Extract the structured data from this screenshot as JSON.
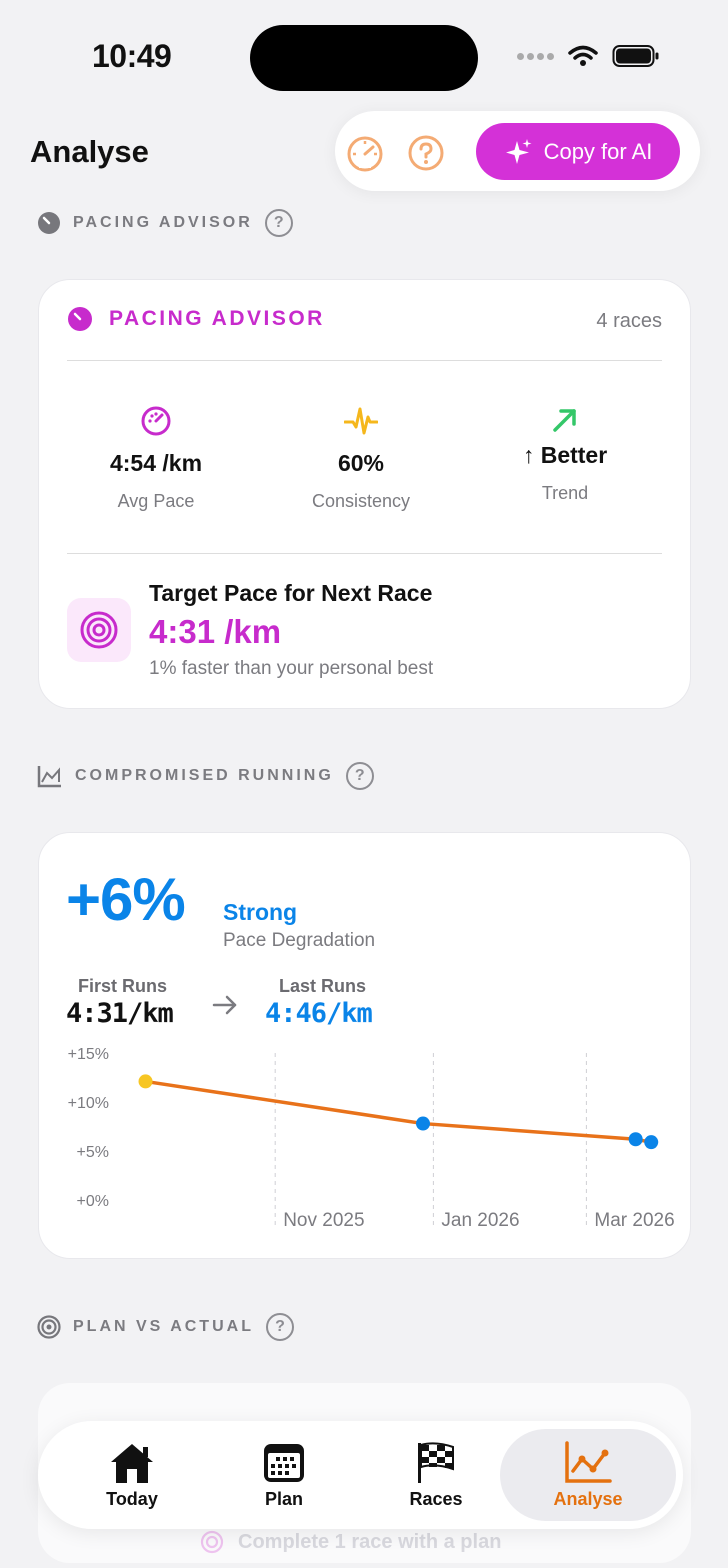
{
  "status": {
    "time": "10:49"
  },
  "header": {
    "title": "Analyse",
    "copy_ai_label": "Copy for AI"
  },
  "pacing_section": {
    "label": "PACING ADVISOR",
    "help": "?"
  },
  "pacing_card": {
    "title": "PACING ADVISOR",
    "race_count": "4 races",
    "stats": [
      {
        "value": "4:54 /km",
        "label": "Avg Pace",
        "icon": "speedometer-icon"
      },
      {
        "value": "60%",
        "label": "Consistency",
        "icon": "pulse-icon"
      },
      {
        "value": "↑ Better",
        "label": "Trend",
        "icon": "arrow-up-right-icon"
      }
    ],
    "target": {
      "title": "Target Pace for Next Race",
      "value": "4:31 /km",
      "subtitle": "1% faster than your personal best"
    }
  },
  "compromised_section": {
    "label": "COMPROMISED RUNNING",
    "help": "?"
  },
  "compromised_card": {
    "degradation": "+6%",
    "rating": "Strong",
    "metric_label": "Pace Degradation",
    "first_runs_label": "First Runs",
    "first_runs_value": "4:31/km",
    "last_runs_label": "Last Runs",
    "last_runs_value": "4:46/km"
  },
  "chart_data": {
    "type": "line",
    "y_ticks": [
      "+15%",
      "+10%",
      "+5%",
      "+0%"
    ],
    "ylim": [
      0,
      15
    ],
    "x_ticks": [
      "Nov 2025",
      "Jan 2026",
      "Mar 2026"
    ],
    "points": [
      {
        "x": "2025-09-12",
        "y": 12.1,
        "color": "#f7c623"
      },
      {
        "x": "2025-12-28",
        "y": 7.8,
        "color": "#0a84e8"
      },
      {
        "x": "2026-03-20",
        "y": 6.2,
        "color": "#0a84e8"
      },
      {
        "x": "2026-03-26",
        "y": 5.9,
        "color": "#0a84e8"
      }
    ],
    "line_color": "#e8721a",
    "grid": "vertical dashed"
  },
  "plan_section": {
    "label": "PLAN VS ACTUAL",
    "help": "?"
  },
  "plan_card": {
    "hint": "Complete 1 race with a plan"
  },
  "tabs": [
    {
      "label": "Today",
      "icon": "house-icon"
    },
    {
      "label": "Plan",
      "icon": "calendar-icon"
    },
    {
      "label": "Races",
      "icon": "checkered-flag-icon"
    },
    {
      "label": "Analyse",
      "icon": "chart-line-icon",
      "active": true
    }
  ],
  "colors": {
    "accent": "#c72bcc",
    "blue": "#0a84e8",
    "orange": "#e4710f"
  }
}
